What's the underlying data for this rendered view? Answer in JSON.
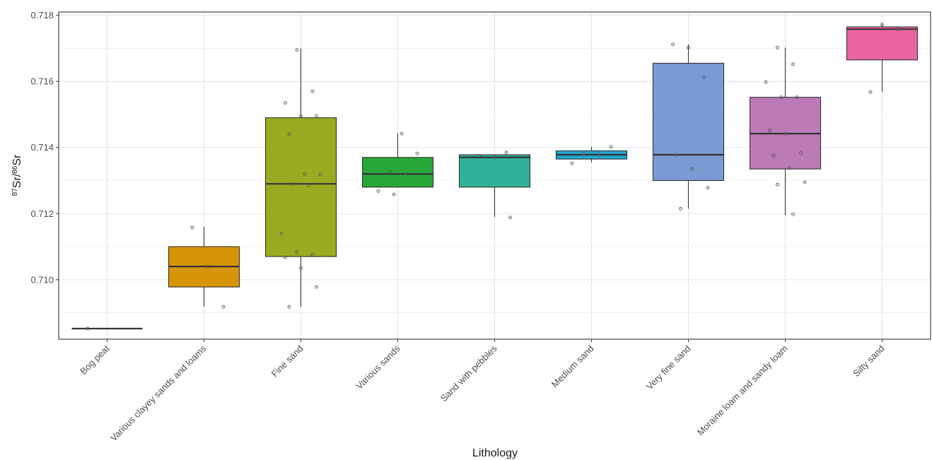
{
  "chart_data": {
    "type": "boxplot",
    "xlabel": "Lithology",
    "ylabel": {
      "iso1_mass": "87",
      "element": "Sr",
      "separator": "/",
      "iso2_mass": "86"
    },
    "ylim": [
      0.7082,
      0.7181
    ],
    "yticks": [
      "0.710",
      "0.712",
      "0.714",
      "0.716",
      "0.718"
    ],
    "grid": true,
    "legend": "none",
    "categories": [
      "Bog peat",
      "Various clayey sands and loams",
      "Fine sand",
      "Various sands",
      "Sand with pebbles",
      "Medium sand",
      "Very fine sand",
      "Moraine loam and sandy loam",
      "Silty sand"
    ],
    "colors": [
      "#333333",
      "#D59506",
      "#99AC21",
      "#27A737",
      "#2FB29A",
      "#24A7D3",
      "#7A9AD3",
      "#BC7AB6",
      "#EA64A3"
    ],
    "boxes": [
      {
        "category": "Bog peat",
        "whisker_low": 0.70852,
        "q1": 0.70852,
        "median": 0.70852,
        "q3": 0.70852,
        "whisker_high": 0.70852
      },
      {
        "category": "Various clayey sands and loams",
        "whisker_low": 0.70918,
        "q1": 0.70978,
        "median": 0.7104,
        "q3": 0.711,
        "whisker_high": 0.7116
      },
      {
        "category": "Fine sand",
        "whisker_low": 0.70918,
        "q1": 0.7107,
        "median": 0.7129,
        "q3": 0.7149,
        "whisker_high": 0.717
      },
      {
        "category": "Various sands",
        "whisker_low": 0.7128,
        "q1": 0.7128,
        "median": 0.7132,
        "q3": 0.7137,
        "whisker_high": 0.71442
      },
      {
        "category": "Sand with pebbles",
        "whisker_low": 0.7119,
        "q1": 0.7128,
        "median": 0.7137,
        "q3": 0.71378,
        "whisker_high": 0.71378
      },
      {
        "category": "Medium sand",
        "whisker_low": 0.71355,
        "q1": 0.71365,
        "median": 0.71378,
        "q3": 0.7139,
        "whisker_high": 0.71402
      },
      {
        "category": "Very fine sand",
        "whisker_low": 0.71215,
        "q1": 0.713,
        "median": 0.71378,
        "q3": 0.71655,
        "whisker_high": 0.71712
      },
      {
        "category": "Moraine loam and sandy loam",
        "whisker_low": 0.71195,
        "q1": 0.71335,
        "median": 0.71442,
        "q3": 0.71552,
        "whisker_high": 0.71702
      },
      {
        "category": "Silty sand",
        "whisker_low": 0.71568,
        "q1": 0.71665,
        "median": 0.71758,
        "q3": 0.71765,
        "whisker_high": 0.71772
      }
    ],
    "points": [
      {
        "category": "Bog peat",
        "values": [
          0.70852
        ]
      },
      {
        "category": "Various clayey sands and loams",
        "values": [
          0.71158,
          0.7104,
          0.70918
        ]
      },
      {
        "category": "Fine sand",
        "values": [
          0.71695,
          0.7157,
          0.71535,
          0.71495,
          0.71495,
          0.7144,
          0.7132,
          0.71318,
          0.7129,
          0.71285,
          0.7114,
          0.71083,
          0.71075,
          0.71068,
          0.71035,
          0.70978,
          0.70918
        ]
      },
      {
        "category": "Various sands",
        "values": [
          0.71442,
          0.71382,
          0.71325,
          0.71318,
          0.71268,
          0.71258
        ]
      },
      {
        "category": "Sand with pebbles",
        "values": [
          0.71385,
          0.71375,
          0.7137,
          0.71188
        ]
      },
      {
        "category": "Medium sand",
        "values": [
          0.71402,
          0.7138,
          0.71378,
          0.71352
        ]
      },
      {
        "category": "Very fine sand",
        "values": [
          0.71712,
          0.71702,
          0.71612,
          0.71378,
          0.71335,
          0.71278,
          0.71215
        ]
      },
      {
        "category": "Moraine loam and sandy loam",
        "values": [
          0.71702,
          0.71652,
          0.71598,
          0.71552,
          0.71552,
          0.71452,
          0.71442,
          0.71383,
          0.71375,
          0.71338,
          0.71295,
          0.71288,
          0.71198
        ]
      },
      {
        "category": "Silty sand",
        "values": [
          0.71772,
          0.71758,
          0.71568
        ]
      }
    ]
  }
}
